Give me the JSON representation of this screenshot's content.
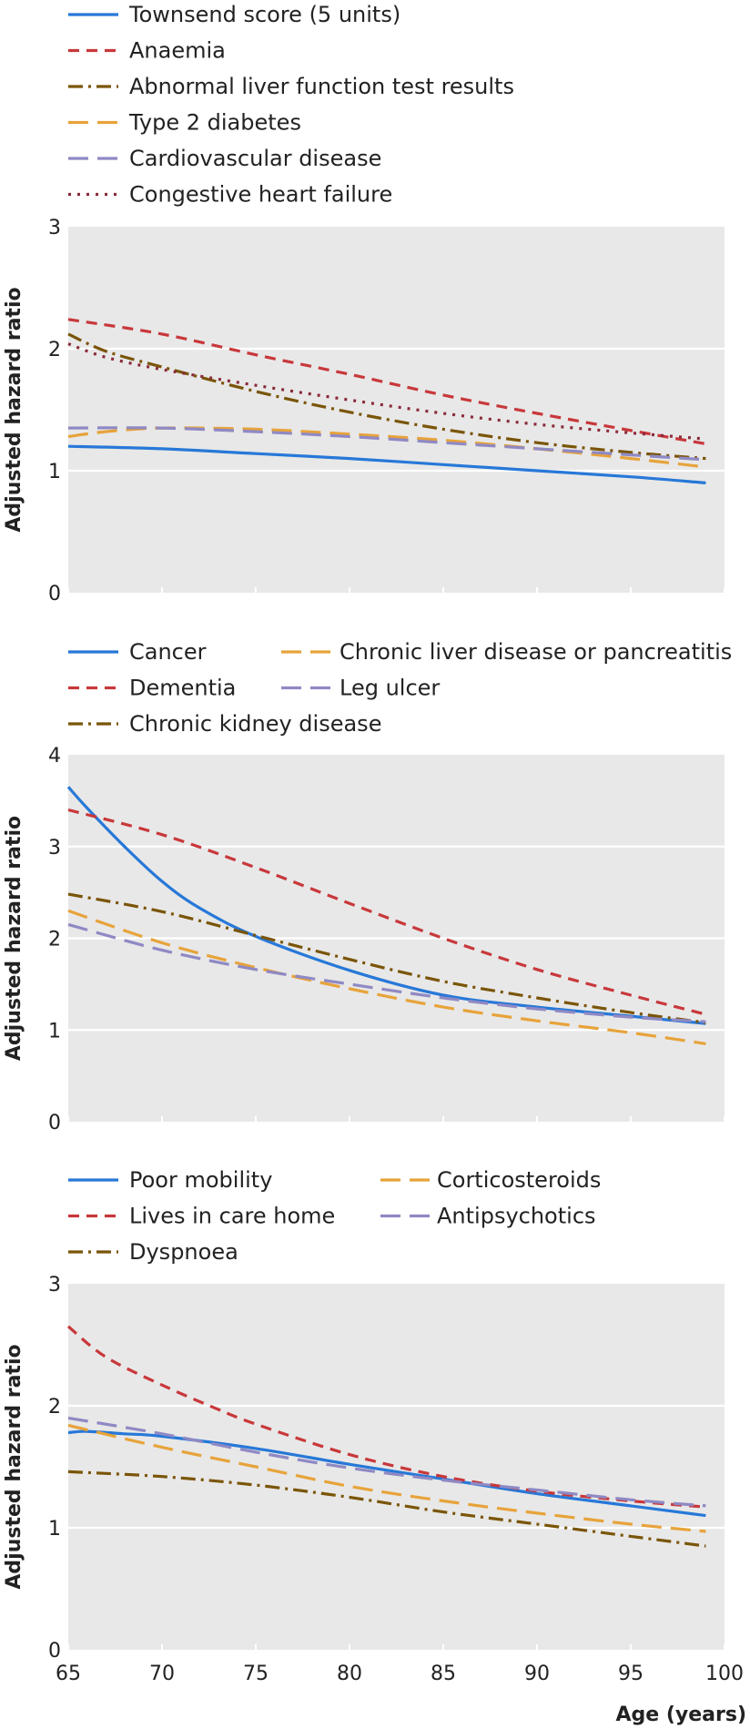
{
  "colors": {
    "blue": "#2778d8",
    "red": "#c8383b",
    "brown": "#7a5508",
    "orange": "#e7a33a",
    "purple": "#8f89c4",
    "maroon": "#8a2a3a",
    "panel_bg": "#e8e8e8",
    "grid": "#ffffff"
  },
  "chart_data": [
    {
      "type": "line",
      "title": "",
      "xlabel": "",
      "ylabel": "Adjusted hazard ratio",
      "xlim": [
        65,
        100
      ],
      "ylim": [
        0,
        3
      ],
      "yticks": [
        0,
        1,
        2,
        3
      ],
      "show_xticks": false,
      "grid": "horizontal",
      "series": [
        {
          "name": "Townsend score (5 units)",
          "color": "blue",
          "dash": "solid",
          "x": [
            65,
            70,
            75,
            80,
            85,
            90,
            95,
            99
          ],
          "y": [
            1.2,
            1.18,
            1.14,
            1.1,
            1.05,
            1.0,
            0.95,
            0.9
          ]
        },
        {
          "name": "Anaemia",
          "color": "red",
          "dash": "dash",
          "x": [
            65,
            70,
            75,
            80,
            85,
            90,
            95,
            99
          ],
          "y": [
            2.24,
            2.12,
            1.95,
            1.79,
            1.62,
            1.47,
            1.33,
            1.22
          ]
        },
        {
          "name": "Abnormal liver function test results",
          "color": "brown",
          "dash": "dashdot",
          "x": [
            65,
            67,
            70,
            75,
            80,
            85,
            90,
            95,
            99
          ],
          "y": [
            2.12,
            1.98,
            1.85,
            1.65,
            1.48,
            1.34,
            1.23,
            1.15,
            1.1
          ]
        },
        {
          "name": "Type 2 diabetes",
          "color": "orange",
          "dash": "longdash",
          "x": [
            65,
            67,
            70,
            75,
            80,
            85,
            90,
            95,
            99
          ],
          "y": [
            1.28,
            1.32,
            1.35,
            1.34,
            1.3,
            1.25,
            1.18,
            1.1,
            1.03
          ]
        },
        {
          "name": "Cardiovascular disease",
          "color": "purple",
          "dash": "longdash",
          "x": [
            65,
            70,
            75,
            80,
            85,
            90,
            95,
            99
          ],
          "y": [
            1.35,
            1.35,
            1.32,
            1.28,
            1.23,
            1.18,
            1.13,
            1.09
          ]
        },
        {
          "name": "Congestive heart failure",
          "color": "maroon",
          "dash": "dot",
          "x": [
            65,
            67,
            70,
            75,
            80,
            85,
            90,
            95,
            99
          ],
          "y": [
            2.04,
            1.93,
            1.83,
            1.7,
            1.58,
            1.47,
            1.38,
            1.31,
            1.26
          ]
        }
      ]
    },
    {
      "type": "line",
      "title": "",
      "xlabel": "",
      "ylabel": "Adjusted hazard ratio",
      "xlim": [
        65,
        100
      ],
      "ylim": [
        0,
        4
      ],
      "yticks": [
        0,
        1,
        2,
        3,
        4
      ],
      "show_xticks": false,
      "grid": "horizontal",
      "series": [
        {
          "name": "Cancer",
          "color": "blue",
          "dash": "solid",
          "x": [
            65,
            66,
            68,
            70,
            72,
            75,
            80,
            85,
            90,
            95,
            99
          ],
          "y": [
            3.65,
            3.42,
            3.0,
            2.62,
            2.33,
            2.02,
            1.65,
            1.38,
            1.25,
            1.15,
            1.07
          ]
        },
        {
          "name": "Dementia",
          "color": "red",
          "dash": "dash",
          "x": [
            65,
            70,
            75,
            80,
            85,
            90,
            95,
            99
          ],
          "y": [
            3.4,
            3.13,
            2.77,
            2.38,
            2.0,
            1.66,
            1.38,
            1.17
          ]
        },
        {
          "name": "Chronic kidney disease",
          "color": "brown",
          "dash": "dashdot",
          "x": [
            65,
            70,
            75,
            80,
            85,
            90,
            95,
            99
          ],
          "y": [
            2.48,
            2.29,
            2.03,
            1.77,
            1.53,
            1.35,
            1.19,
            1.08
          ]
        },
        {
          "name": "Chronic liver disease or pancreatitis",
          "color": "orange",
          "dash": "longdash",
          "x": [
            65,
            70,
            75,
            80,
            85,
            90,
            95,
            99
          ],
          "y": [
            2.3,
            1.95,
            1.68,
            1.45,
            1.25,
            1.1,
            0.97,
            0.85
          ]
        },
        {
          "name": "Leg ulcer",
          "color": "purple",
          "dash": "longdash",
          "x": [
            65,
            70,
            75,
            80,
            85,
            90,
            95,
            99
          ],
          "y": [
            2.15,
            1.87,
            1.66,
            1.5,
            1.35,
            1.23,
            1.14,
            1.09
          ]
        }
      ],
      "legend_columns": 2
    },
    {
      "type": "line",
      "title": "",
      "xlabel": "Age (years)",
      "ylabel": "Adjusted hazard ratio",
      "xlim": [
        65,
        100
      ],
      "ylim": [
        0,
        3
      ],
      "yticks": [
        0,
        1,
        2,
        3
      ],
      "xticks": [
        65,
        70,
        75,
        80,
        85,
        90,
        95,
        100
      ],
      "show_xticks": true,
      "grid": "horizontal",
      "series": [
        {
          "name": "Poor mobility",
          "color": "blue",
          "dash": "solid",
          "x": [
            65,
            66,
            68,
            70,
            75,
            80,
            85,
            90,
            95,
            99
          ],
          "y": [
            1.78,
            1.79,
            1.77,
            1.75,
            1.65,
            1.52,
            1.4,
            1.28,
            1.18,
            1.1
          ]
        },
        {
          "name": "Lives in care home",
          "color": "red",
          "dash": "dash",
          "x": [
            65,
            67,
            70,
            73,
            75,
            80,
            85,
            90,
            95,
            99
          ],
          "y": [
            2.65,
            2.4,
            2.17,
            1.97,
            1.85,
            1.6,
            1.42,
            1.3,
            1.22,
            1.17
          ]
        },
        {
          "name": "Dyspnoea",
          "color": "brown",
          "dash": "dashdot",
          "x": [
            65,
            70,
            75,
            80,
            85,
            90,
            95,
            99
          ],
          "y": [
            1.46,
            1.42,
            1.35,
            1.25,
            1.13,
            1.03,
            0.93,
            0.85
          ]
        },
        {
          "name": "Corticosteroids",
          "color": "orange",
          "dash": "longdash",
          "x": [
            65,
            70,
            75,
            80,
            85,
            90,
            95,
            99
          ],
          "y": [
            1.84,
            1.66,
            1.5,
            1.34,
            1.22,
            1.12,
            1.03,
            0.97
          ]
        },
        {
          "name": "Antipsychotics",
          "color": "purple",
          "dash": "longdash",
          "x": [
            65,
            70,
            75,
            80,
            85,
            90,
            95,
            99
          ],
          "y": [
            1.9,
            1.77,
            1.62,
            1.49,
            1.39,
            1.31,
            1.23,
            1.18
          ]
        }
      ],
      "legend_columns": 2
    }
  ]
}
